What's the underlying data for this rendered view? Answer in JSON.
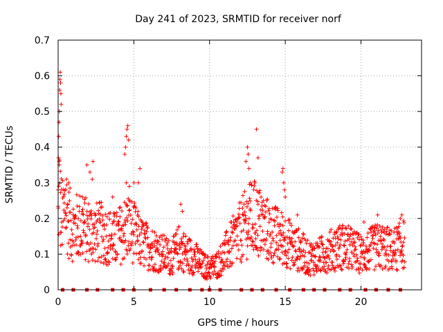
{
  "chart_data": {
    "type": "scatter",
    "title": "Day 241 of 2023, SRMTID for receiver norf",
    "xlabel": "GPS time / hours",
    "ylabel": "SRMTID / TECUs",
    "xlim": [
      0,
      24
    ],
    "ylim": [
      0,
      0.7
    ],
    "xticks": [
      0,
      5,
      10,
      15,
      20
    ],
    "yticks": [
      0,
      0.1,
      0.2,
      0.3,
      0.4,
      0.5,
      0.6,
      0.7
    ],
    "xtick_labels": [
      "0",
      "5",
      "10",
      "15",
      "20"
    ],
    "ytick_labels": [
      "0",
      "0.1",
      "0.2",
      "0.3",
      "0.4",
      "0.5",
      "0.6",
      "0.7"
    ],
    "grid": true,
    "marker": "plus",
    "series_color": "#ff0000",
    "zero_marker_color": "#e00000",
    "profile": [
      [
        0.0,
        0.2
      ],
      [
        0.08,
        0.3
      ],
      [
        0.15,
        0.22
      ],
      [
        0.3,
        0.2
      ],
      [
        0.5,
        0.24
      ],
      [
        0.7,
        0.19
      ],
      [
        1.0,
        0.17
      ],
      [
        1.4,
        0.18
      ],
      [
        1.8,
        0.17
      ],
      [
        2.3,
        0.16
      ],
      [
        2.8,
        0.16
      ],
      [
        3.3,
        0.15
      ],
      [
        3.8,
        0.14
      ],
      [
        4.2,
        0.16
      ],
      [
        4.6,
        0.18
      ],
      [
        5.0,
        0.16
      ],
      [
        5.5,
        0.13
      ],
      [
        6.0,
        0.12
      ],
      [
        6.5,
        0.11
      ],
      [
        7.0,
        0.1
      ],
      [
        7.5,
        0.09
      ],
      [
        8.0,
        0.12
      ],
      [
        8.5,
        0.1
      ],
      [
        9.0,
        0.09
      ],
      [
        9.5,
        0.07
      ],
      [
        10.0,
        0.06
      ],
      [
        10.5,
        0.07
      ],
      [
        11.0,
        0.1
      ],
      [
        11.5,
        0.13
      ],
      [
        12.0,
        0.16
      ],
      [
        12.5,
        0.19
      ],
      [
        13.0,
        0.2
      ],
      [
        13.5,
        0.18
      ],
      [
        14.0,
        0.16
      ],
      [
        14.5,
        0.15
      ],
      [
        15.0,
        0.14
      ],
      [
        15.5,
        0.12
      ],
      [
        16.0,
        0.11
      ],
      [
        16.5,
        0.09
      ],
      [
        17.0,
        0.09
      ],
      [
        17.5,
        0.1
      ],
      [
        18.0,
        0.11
      ],
      [
        18.5,
        0.12
      ],
      [
        19.0,
        0.12
      ],
      [
        19.5,
        0.11
      ],
      [
        20.0,
        0.1
      ],
      [
        20.5,
        0.11
      ],
      [
        21.0,
        0.12
      ],
      [
        21.5,
        0.12
      ],
      [
        22.0,
        0.11
      ],
      [
        22.5,
        0.12
      ],
      [
        22.9,
        0.13
      ]
    ],
    "spikes": [
      [
        0.0,
        0.28
      ],
      [
        0.02,
        0.37
      ],
      [
        0.04,
        0.43
      ],
      [
        0.06,
        0.47
      ],
      [
        0.08,
        0.5
      ],
      [
        0.1,
        0.56
      ],
      [
        0.12,
        0.59
      ],
      [
        0.14,
        0.61
      ],
      [
        0.16,
        0.58
      ],
      [
        0.18,
        0.55
      ],
      [
        0.2,
        0.52
      ],
      [
        0.55,
        0.31
      ],
      [
        0.7,
        0.3
      ],
      [
        1.6,
        0.26
      ],
      [
        1.9,
        0.35
      ],
      [
        2.1,
        0.33
      ],
      [
        2.3,
        0.36
      ],
      [
        2.25,
        0.31
      ],
      [
        3.6,
        0.26
      ],
      [
        4.4,
        0.38
      ],
      [
        4.45,
        0.4
      ],
      [
        4.5,
        0.43
      ],
      [
        4.55,
        0.45
      ],
      [
        4.6,
        0.46
      ],
      [
        4.65,
        0.42
      ],
      [
        4.5,
        0.3
      ],
      [
        4.7,
        0.29
      ],
      [
        5.0,
        0.3
      ],
      [
        5.4,
        0.34
      ],
      [
        5.3,
        0.3
      ],
      [
        8.1,
        0.24
      ],
      [
        8.2,
        0.22
      ],
      [
        12.4,
        0.36
      ],
      [
        12.5,
        0.4
      ],
      [
        12.55,
        0.38
      ],
      [
        12.6,
        0.34
      ],
      [
        12.7,
        0.3
      ],
      [
        13.1,
        0.45
      ],
      [
        13.2,
        0.37
      ],
      [
        13.0,
        0.3
      ],
      [
        13.4,
        0.26
      ],
      [
        13.2,
        0.24
      ],
      [
        14.8,
        0.33
      ],
      [
        14.85,
        0.34
      ],
      [
        14.9,
        0.3
      ],
      [
        14.95,
        0.28
      ],
      [
        15.0,
        0.26
      ],
      [
        15.8,
        0.21
      ],
      [
        18.5,
        0.17
      ],
      [
        18.8,
        0.18
      ],
      [
        20.2,
        0.19
      ],
      [
        21.1,
        0.21
      ],
      [
        22.6,
        0.2
      ],
      [
        22.7,
        0.21
      ]
    ],
    "zero_markers_x": [
      0.3,
      1.0,
      1.9,
      2.6,
      3.6,
      4.3,
      5.0,
      6.1,
      7.0,
      7.8,
      8.7,
      9.5,
      10.0,
      10.7,
      12.1,
      12.8,
      13.5,
      14.4,
      15.3,
      16.2,
      16.9,
      17.6,
      18.6,
      19.3,
      20.3,
      21.0,
      21.8,
      22.6
    ]
  }
}
